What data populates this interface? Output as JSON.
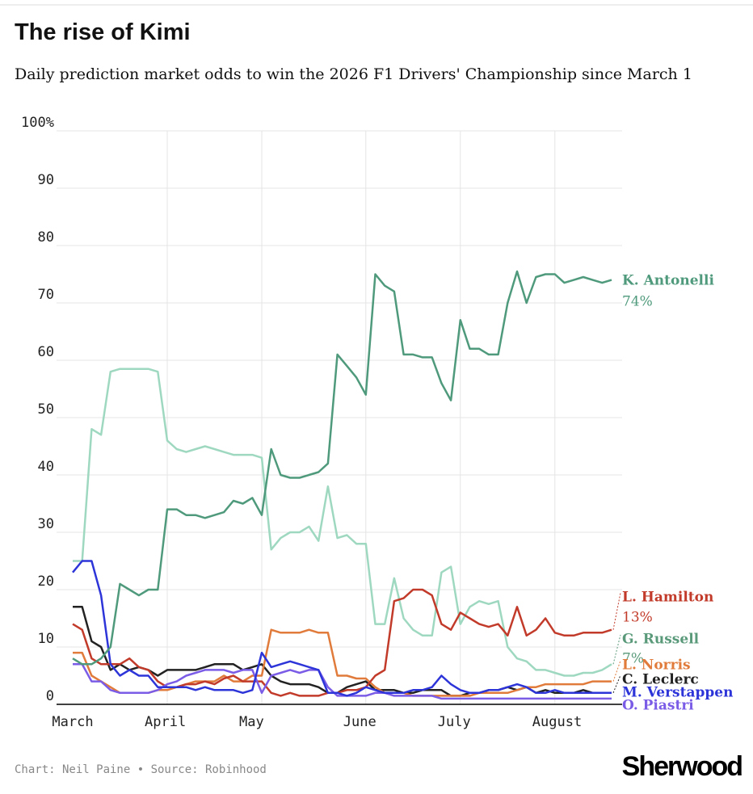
{
  "chart_data": {
    "type": "line",
    "title": "The rise of Kimi",
    "subtitle": "Daily prediction market odds to win the 2026 F1 Drivers' Championship since March 1",
    "footer": "Chart: Neil Paine • Source: Robinhood",
    "logo": "Sherwood",
    "categories": [
      "March",
      null,
      null,
      null,
      null,
      null,
      null,
      null,
      null,
      null,
      "April",
      null,
      null,
      null,
      null,
      null,
      null,
      null,
      null,
      null,
      "May",
      null,
      null,
      null,
      null,
      null,
      null,
      null,
      null,
      null,
      null,
      "June",
      null,
      null,
      null,
      null,
      null,
      null,
      null,
      null,
      null,
      "July",
      null,
      null,
      null,
      null,
      null,
      null,
      null,
      null,
      null,
      "August",
      null,
      null,
      null,
      null,
      null,
      null
    ],
    "ylim": [
      0,
      100
    ],
    "yticks": [
      0,
      10,
      20,
      30,
      40,
      50,
      60,
      70,
      80,
      90,
      {
        "value": 100,
        "label": "100%"
      }
    ],
    "grid": true,
    "series": [
      {
        "name": "K. Antonelli",
        "color": "#4f9a7c",
        "end_label": "74%",
        "values": [
          8,
          7,
          7,
          8,
          10,
          21,
          20,
          19,
          20,
          20,
          34,
          34,
          33,
          33,
          32.5,
          33,
          33.5,
          35.5,
          35,
          36,
          33,
          44.5,
          40,
          39.5,
          39.5,
          40,
          40.5,
          42,
          61,
          59,
          57,
          54,
          75,
          73,
          72,
          61,
          61,
          60.5,
          60.5,
          56,
          53,
          67,
          62,
          62,
          61,
          61,
          70,
          75.5,
          70,
          74.5,
          75,
          75,
          73.5,
          74,
          74.5,
          74,
          73.5,
          74
        ]
      },
      {
        "name": "G. Russell",
        "color": "#9fd8c0",
        "end_label": "7%",
        "values": [
          25,
          25,
          48,
          47,
          58,
          58.5,
          58.5,
          58.5,
          58.5,
          58,
          46,
          44.5,
          44,
          44.5,
          45,
          44.5,
          44,
          43.5,
          43.5,
          43.5,
          43,
          27,
          29,
          30,
          30,
          31,
          28.5,
          38,
          29,
          29.5,
          28,
          28,
          14,
          14,
          22,
          15,
          13,
          12,
          12,
          23,
          24,
          14,
          17,
          18,
          17.5,
          18,
          10,
          8,
          7.5,
          6,
          6,
          5.5,
          5,
          5,
          5.5,
          5.5,
          6,
          7
        ]
      },
      {
        "name": "L. Hamilton",
        "color": "#c23b2a",
        "end_label": "13%",
        "values": [
          14,
          13,
          8,
          7,
          7,
          7,
          8,
          6.5,
          6,
          4,
          3,
          3,
          3.5,
          3.5,
          4,
          3.5,
          4.5,
          5,
          4,
          4,
          4,
          2,
          1.5,
          2,
          1.5,
          1.5,
          1.5,
          2,
          2,
          2.5,
          2.5,
          3,
          5,
          6,
          18,
          18.5,
          20,
          20,
          19,
          14,
          13,
          16,
          15,
          14,
          13.5,
          14,
          12,
          17,
          12,
          13,
          15,
          12.5,
          12,
          12,
          12.5,
          12.5,
          12.5,
          13
        ]
      },
      {
        "name": "L. Norris",
        "color": "#e07b3b",
        "values": [
          9,
          9,
          5,
          4,
          3,
          2,
          2,
          2,
          2,
          2.5,
          2.5,
          3,
          3.5,
          4,
          4,
          4,
          5,
          4,
          4,
          5,
          5,
          13,
          12.5,
          12.5,
          12.5,
          13,
          12.5,
          12.5,
          5,
          5,
          4.5,
          4.5,
          3,
          2,
          2,
          2,
          1.5,
          1.5,
          1.5,
          1.5,
          1.5,
          1.5,
          1.5,
          2,
          2,
          2,
          2,
          2.5,
          3,
          3,
          3.5,
          3.5,
          3.5,
          3.5,
          3.5,
          4,
          4,
          4
        ]
      },
      {
        "name": "C. Leclerc",
        "color": "#222222",
        "values": [
          17,
          17,
          11,
          10,
          6,
          7,
          6,
          6.5,
          6,
          5,
          6,
          6,
          6,
          6,
          6.5,
          7,
          7,
          7,
          6,
          6.5,
          7,
          5,
          4,
          3.5,
          3.5,
          3.5,
          3,
          2,
          2,
          3,
          3.5,
          4,
          2.5,
          2.5,
          2.5,
          2,
          2,
          2.5,
          2.5,
          2.5,
          1.5,
          1.5,
          2,
          2,
          2.5,
          2.5,
          3,
          2.5,
          3,
          2,
          2.5,
          2,
          2,
          2,
          2.5,
          2,
          2,
          2
        ]
      },
      {
        "name": "M. Verstappen",
        "color": "#2d35d9",
        "values": [
          23,
          25,
          25,
          19,
          7,
          5,
          6,
          5,
          5,
          3,
          3,
          3,
          3,
          2.5,
          3,
          2.5,
          2.5,
          2.5,
          2,
          2.5,
          9,
          6.5,
          7,
          7.5,
          7,
          6.5,
          6,
          2,
          2,
          1.5,
          2,
          3,
          2.5,
          2,
          2,
          2,
          2.5,
          2.5,
          3,
          5,
          3.5,
          2.5,
          2,
          2,
          2.5,
          2.5,
          3,
          3.5,
          3,
          2,
          2,
          2.5,
          2,
          2,
          2,
          2,
          2,
          2
        ]
      },
      {
        "name": "O. Piastri",
        "color": "#7a5ce6",
        "values": [
          7,
          7,
          4,
          4,
          2.5,
          2,
          2,
          2,
          2,
          2.5,
          3.5,
          4,
          5,
          5.5,
          6,
          6,
          6,
          5.5,
          6,
          6,
          2,
          5,
          5.5,
          6,
          5.5,
          6,
          6,
          3,
          1.5,
          1.5,
          1.5,
          1.5,
          2,
          2,
          1.5,
          1.5,
          1.5,
          1.5,
          1.5,
          1,
          1,
          1,
          1,
          1,
          1,
          1,
          1,
          1,
          1,
          1,
          1,
          1,
          1,
          1,
          1,
          1,
          1,
          1
        ]
      }
    ]
  }
}
